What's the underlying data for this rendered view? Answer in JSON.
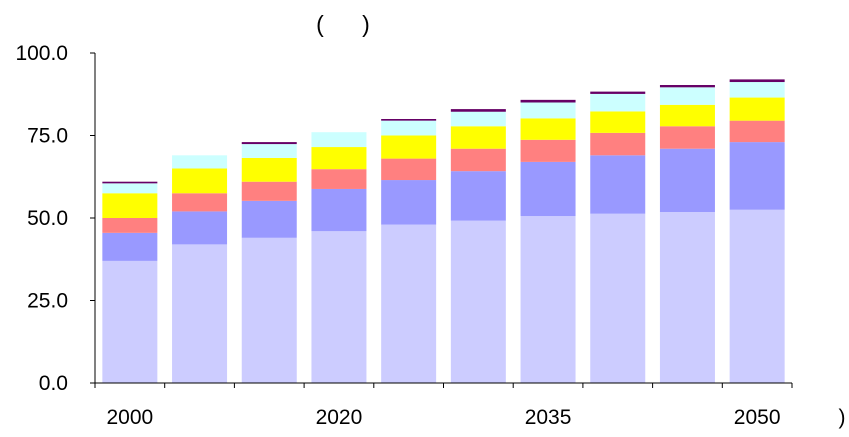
{
  "chart_data": {
    "type": "bar",
    "stacked": true,
    "title": "(      )",
    "xlabel": ")",
    "ylabel": "",
    "ylim": [
      0,
      100
    ],
    "yticks": [
      "0.0",
      "25.0",
      "50.0",
      "75.0",
      "100.0"
    ],
    "categories": [
      "2000",
      "",
      "",
      "2020",
      "",
      "",
      "2035",
      "",
      "",
      "2050"
    ],
    "grid": false,
    "legend": "none",
    "series": [
      {
        "color": "#CCCCFF",
        "values": [
          37.0,
          42.0,
          44.0,
          46.0,
          48.0,
          49.2,
          50.6,
          51.3,
          51.8,
          52.5
        ]
      },
      {
        "color": "#9999FF",
        "values": [
          8.5,
          10.0,
          11.2,
          12.8,
          13.5,
          15.0,
          16.4,
          17.7,
          19.2,
          20.5
        ]
      },
      {
        "color": "#FF8080",
        "values": [
          4.5,
          5.5,
          5.8,
          6.0,
          6.5,
          6.8,
          6.7,
          6.8,
          6.8,
          6.5
        ]
      },
      {
        "color": "#FFFF00",
        "values": [
          7.5,
          7.5,
          7.2,
          6.7,
          7.0,
          6.8,
          6.5,
          6.5,
          6.5,
          7.0
        ]
      },
      {
        "color": "#CCFFFF",
        "values": [
          3.0,
          4.0,
          4.2,
          4.5,
          4.5,
          4.4,
          4.8,
          5.3,
          5.3,
          4.7
        ]
      },
      {
        "color": "#660066",
        "values": [
          0.5,
          0.0,
          0.6,
          0.0,
          0.5,
          0.8,
          0.8,
          0.7,
          0.7,
          0.8
        ]
      }
    ]
  }
}
